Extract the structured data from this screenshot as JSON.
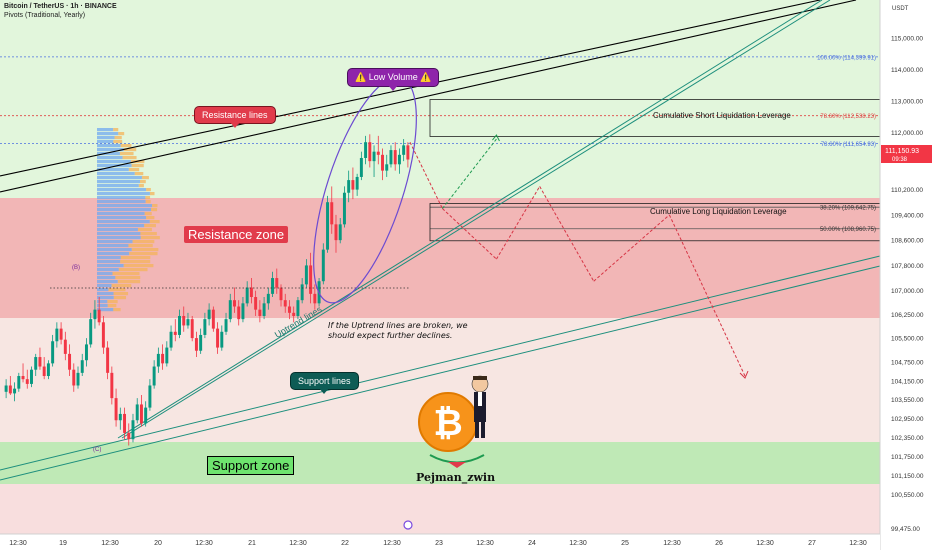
{
  "header": {
    "title": "Bitcoin / TetherUS · 1h · BINANCE",
    "indicator": "Pivots (Traditional, Yearly)"
  },
  "colors": {
    "bull": "#089981",
    "bear": "#f23645",
    "resistance_zone": "#f0a9a9",
    "support_zone": "#b9eab2",
    "upper_bg": "#dff5d9",
    "price_tag": "#f23645",
    "trendline": "#000000",
    "uptrend_channel": "#1e8f7d",
    "projection_down": "#d63545",
    "projection_up": "#1e9a50",
    "ellipse": "#6c4bd1",
    "pivot_line": "#4a6ee0"
  },
  "annotations": {
    "resistance_lines": "Resistance lines",
    "low_volume": "⚠️ Low Volume ⚠️",
    "support_lines": "Support lines",
    "resistance_zone": "Resistance zone",
    "support_zone": "Support zone",
    "uptrend_lines": "Uptrend lines",
    "note_line1": "If the Uptrend lines are broken, we",
    "note_line2": "should expect further declines.",
    "short_liq": "Cumulative Short Liquidation Leverage",
    "long_liq": "Cumulative Long Liquidation Leverage",
    "author": "Pejman_zwin",
    "wave_b": "(B)",
    "wave_c": "(C)"
  },
  "chart_data": {
    "type": "candlestick",
    "symbol": "BTCUSDT",
    "exchange": "BINANCE",
    "timeframe": "1h",
    "currency": "USDT",
    "ylim": [
      99300,
      116200
    ],
    "y_ticks": [
      "115,000.00",
      "114,000.00",
      "113,000.00",
      "112,000.00",
      "110,200.00",
      "109,400.00",
      "108,600.00",
      "107,800.00",
      "107,000.00",
      "106,250.00",
      "105,500.00",
      "104,750.00",
      "104,150.00",
      "103,550.00",
      "102,950.00",
      "102,350.00",
      "101,750.00",
      "101,150.00",
      "100,550.00",
      "99,475.00"
    ],
    "x_ticks": [
      "12:30",
      "19",
      "12:30",
      "20",
      "12:30",
      "21",
      "12:30",
      "22",
      "12:30",
      "23",
      "12:30",
      "24",
      "12:30",
      "25",
      "12:30",
      "26",
      "12:30",
      "27",
      "12:30"
    ],
    "last_price": "111,150.93",
    "countdown": "09:38",
    "fib_levels": [
      {
        "label": "100.00% (114,399.91)",
        "value": 114399.91
      },
      {
        "label": "78.60% (112,538.23)",
        "value": 112538.23
      },
      {
        "label": "78.60% (111,654.93)",
        "value": 111654.93
      },
      {
        "label": "38.20% (109,642.75)",
        "value": 109642.75
      },
      {
        "label": "50.00% (108,960.75)",
        "value": 108960.75
      }
    ],
    "zones": {
      "resistance": [
        105750,
        109450
      ],
      "support": [
        100720,
        101950
      ]
    },
    "liquidation_boxes": {
      "short": [
        111880,
        113050
      ],
      "long": [
        108580,
        109760
      ]
    },
    "candles": [
      [
        103800,
        104200,
        103600,
        104000
      ],
      [
        104000,
        104300,
        103700,
        103750
      ],
      [
        103750,
        104100,
        103500,
        103900
      ],
      [
        103900,
        104400,
        103800,
        104300
      ],
      [
        104300,
        104700,
        104100,
        104200
      ],
      [
        104200,
        104500,
        103900,
        104050
      ],
      [
        104050,
        104600,
        103950,
        104500
      ],
      [
        104500,
        105000,
        104300,
        104900
      ],
      [
        104900,
        105200,
        104500,
        104600
      ],
      [
        104600,
        104900,
        104200,
        104300
      ],
      [
        104300,
        104800,
        104200,
        104700
      ],
      [
        104700,
        105600,
        104600,
        105400
      ],
      [
        105400,
        106000,
        105200,
        105800
      ],
      [
        105800,
        106000,
        105300,
        105450
      ],
      [
        105450,
        105700,
        104800,
        105000
      ],
      [
        105000,
        105300,
        104300,
        104500
      ],
      [
        104500,
        104700,
        103800,
        104000
      ],
      [
        104000,
        104600,
        103900,
        104400
      ],
      [
        104400,
        105000,
        104300,
        104800
      ],
      [
        104800,
        105500,
        104600,
        105300
      ],
      [
        105300,
        106300,
        105200,
        106100
      ],
      [
        106100,
        106700,
        105800,
        106400
      ],
      [
        106400,
        106800,
        105900,
        106000
      ],
      [
        106000,
        106200,
        105000,
        105200
      ],
      [
        105200,
        105400,
        104200,
        104400
      ],
      [
        104400,
        104600,
        103400,
        103600
      ],
      [
        103600,
        103900,
        102700,
        102900
      ],
      [
        102900,
        103300,
        102600,
        103100
      ],
      [
        103100,
        103300,
        102300,
        102500
      ],
      [
        102500,
        102800,
        102100,
        102300
      ],
      [
        102300,
        103100,
        102200,
        102900
      ],
      [
        102900,
        103600,
        102800,
        103400
      ],
      [
        103400,
        103700,
        102700,
        102800
      ],
      [
        102800,
        103500,
        102700,
        103300
      ],
      [
        103300,
        104200,
        103200,
        104000
      ],
      [
        104000,
        104800,
        103900,
        104600
      ],
      [
        104600,
        105200,
        104400,
        105000
      ],
      [
        105000,
        105300,
        104500,
        104700
      ],
      [
        104700,
        105400,
        104600,
        105200
      ],
      [
        105200,
        105900,
        105100,
        105700
      ],
      [
        105700,
        106100,
        105400,
        105600
      ],
      [
        105600,
        106400,
        105500,
        106200
      ],
      [
        106200,
        106500,
        105700,
        105900
      ],
      [
        105900,
        106300,
        105800,
        106100
      ],
      [
        106100,
        106200,
        105400,
        105500
      ],
      [
        105500,
        105700,
        104900,
        105100
      ],
      [
        105100,
        105800,
        105000,
        105600
      ],
      [
        105600,
        106300,
        105500,
        106100
      ],
      [
        106100,
        106600,
        105900,
        106400
      ],
      [
        106400,
        106500,
        105700,
        105800
      ],
      [
        105800,
        106000,
        105000,
        105200
      ],
      [
        105200,
        105900,
        105100,
        105700
      ],
      [
        105700,
        106300,
        105600,
        106100
      ],
      [
        106100,
        106900,
        106000,
        106700
      ],
      [
        106700,
        107100,
        106300,
        106500
      ],
      [
        106500,
        106700,
        105900,
        106100
      ],
      [
        106100,
        106800,
        106000,
        106600
      ],
      [
        106600,
        107300,
        106500,
        107100
      ],
      [
        107100,
        107400,
        106600,
        106800
      ],
      [
        106800,
        107000,
        106200,
        106400
      ],
      [
        106400,
        106700,
        106000,
        106200
      ],
      [
        106200,
        106800,
        106100,
        106600
      ],
      [
        106600,
        107100,
        106400,
        106900
      ],
      [
        106900,
        107600,
        106800,
        107400
      ],
      [
        107400,
        107700,
        106900,
        107100
      ],
      [
        107100,
        107200,
        106500,
        106700
      ],
      [
        106700,
        106900,
        106300,
        106500
      ],
      [
        106500,
        106700,
        106100,
        106300
      ],
      [
        106300,
        106500,
        106000,
        106200
      ],
      [
        106200,
        106800,
        106100,
        106700
      ],
      [
        106700,
        107400,
        106600,
        107200
      ],
      [
        107200,
        108000,
        107100,
        107800
      ],
      [
        107800,
        108200,
        106600,
        106900
      ],
      [
        106900,
        107200,
        106400,
        106600
      ],
      [
        106600,
        107400,
        106500,
        107300
      ],
      [
        107300,
        108500,
        107200,
        108300
      ],
      [
        108300,
        110000,
        108200,
        109800
      ],
      [
        109800,
        110300,
        108800,
        109100
      ],
      [
        109100,
        109400,
        108200,
        108600
      ],
      [
        108600,
        109300,
        108500,
        109100
      ],
      [
        109100,
        110300,
        109000,
        110100
      ],
      [
        110100,
        110800,
        109800,
        110500
      ],
      [
        110500,
        110900,
        109900,
        110200
      ],
      [
        110200,
        110700,
        110000,
        110600
      ],
      [
        110600,
        111400,
        110500,
        111200
      ],
      [
        111200,
        111900,
        111000,
        111700
      ],
      [
        111700,
        111950,
        110900,
        111100
      ],
      [
        111100,
        111600,
        110600,
        111400
      ],
      [
        111400,
        111900,
        111000,
        111300
      ],
      [
        111300,
        111500,
        110500,
        110800
      ],
      [
        110800,
        111300,
        110600,
        111000
      ],
      [
        111000,
        111600,
        110900,
        111450
      ],
      [
        111450,
        111700,
        110800,
        111000
      ],
      [
        111000,
        111500,
        110700,
        111300
      ],
      [
        111300,
        111800,
        111100,
        111600
      ],
      [
        111600,
        111700,
        110900,
        111151
      ]
    ],
    "projections": {
      "down_path": [
        [
          45,
          111700
        ],
        [
          48,
          109600
        ],
        [
          53,
          108000
        ],
        [
          57,
          110300
        ],
        [
          62,
          107300
        ],
        [
          69,
          109400
        ],
        [
          76,
          104300
        ]
      ],
      "alt_up": [
        [
          48,
          109600
        ],
        [
          53,
          111800
        ]
      ]
    },
    "trendlines": {
      "resistance_1": [
        [
          0,
          110600
        ],
        [
          90,
          116200
        ]
      ],
      "resistance_2": [
        [
          0,
          110000
        ],
        [
          90,
          115600
        ]
      ],
      "uptrend_1": [
        [
          12,
          102200
        ],
        [
          88,
          116200
        ]
      ],
      "uptrend_2": [
        [
          12,
          102050
        ],
        [
          88,
          116050
        ]
      ],
      "support_1": [
        [
          0,
          100900
        ],
        [
          100,
          107900
        ]
      ],
      "support_2": [
        [
          0,
          101150
        ],
        [
          100,
          108200
        ]
      ]
    }
  }
}
